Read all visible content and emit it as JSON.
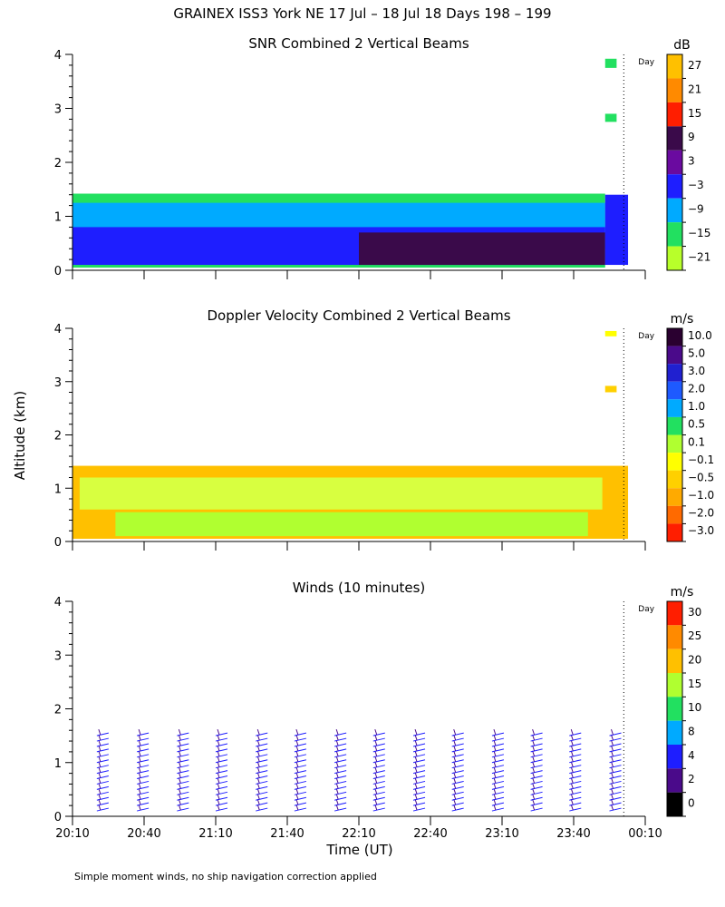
{
  "title": "GRAINEX ISS3 York NE  17 Jul – 18 Jul 18 Days 198 – 199",
  "footnote": "Simple moment winds, no ship navigation correction applied",
  "y_axis_label": "Altitude (km)",
  "x_axis_label": "Time (UT)",
  "day_label": "Day",
  "chart_data": [
    {
      "type": "heatmap",
      "title": "SNR Combined 2 Vertical Beams",
      "ylabel": "Altitude (km)",
      "ylim": [
        0,
        4
      ],
      "yticks": [
        "0",
        "1",
        "2",
        "3",
        "4"
      ],
      "xlim": [
        "20:10",
        "00:10"
      ],
      "xticks": [],
      "colorbar": {
        "unit": "dB",
        "labels": [
          "27",
          "21",
          "15",
          "9",
          "3",
          "−3",
          "−9",
          "−15",
          "−21"
        ],
        "colors": [
          "#ffc000",
          "#ff8a00",
          "#ff1e00",
          "#3a0a4a",
          "#6a0aa0",
          "#1e1eff",
          "#00aaff",
          "#22e060",
          "#b8ff2a"
        ]
      },
      "regions": [
        {
          "t0": 0,
          "t1": 3.72,
          "z0": 0.05,
          "z1": 1.42,
          "color": "#22e060"
        },
        {
          "t0": 0,
          "t1": 3.72,
          "z0": 0.4,
          "z1": 1.25,
          "color": "#00aaff"
        },
        {
          "t0": 0,
          "t1": 3.72,
          "z0": 0.1,
          "z1": 0.8,
          "color": "#1e1eff"
        },
        {
          "t0": 2.0,
          "t1": 3.72,
          "z0": 0.1,
          "z1": 0.7,
          "color": "#3a0a4a"
        },
        {
          "t0": 3.72,
          "t1": 3.88,
          "z0": 0.1,
          "z1": 1.4,
          "color": "#1e1eff"
        },
        {
          "t0": 3.72,
          "t1": 3.8,
          "z0": 2.75,
          "z1": 2.9,
          "color": "#22e060"
        },
        {
          "t0": 3.72,
          "t1": 3.8,
          "z0": 3.75,
          "z1": 3.92,
          "color": "#22e060"
        }
      ]
    },
    {
      "type": "heatmap",
      "title": "Doppler Velocity Combined 2 Vertical Beams",
      "ylabel": "Altitude (km)",
      "ylim": [
        0,
        4
      ],
      "yticks": [
        "0",
        "1",
        "2",
        "3",
        "4"
      ],
      "xlim": [
        "20:10",
        "00:10"
      ],
      "xticks": [],
      "colorbar": {
        "unit": "m/s",
        "labels": [
          "10.0",
          "5.0",
          "3.0",
          "2.0",
          "1.0",
          "0.5",
          "0.1",
          "−0.1",
          "−0.5",
          "−1.0",
          "−2.0",
          "−3.0"
        ],
        "colors": [
          "#2a0030",
          "#4a0a8a",
          "#2020d0",
          "#1e5aff",
          "#00aaff",
          "#22e060",
          "#b0ff30",
          "#ffff00",
          "#ffd000",
          "#ffaa00",
          "#ff6a00",
          "#ff1e00"
        ]
      },
      "regions": [
        {
          "t0": 0,
          "t1": 3.88,
          "z0": 0.05,
          "z1": 1.42,
          "color": "#ffc000"
        },
        {
          "t0": 0.05,
          "t1": 3.7,
          "z0": 0.6,
          "z1": 1.2,
          "color": "#d8ff40"
        },
        {
          "t0": 0.3,
          "t1": 3.6,
          "z0": 0.1,
          "z1": 0.55,
          "color": "#b0ff30"
        },
        {
          "t0": 3.72,
          "t1": 3.8,
          "z0": 2.8,
          "z1": 2.92,
          "color": "#ffd000"
        },
        {
          "t0": 3.72,
          "t1": 3.8,
          "z0": 3.85,
          "z1": 3.95,
          "color": "#ffff00"
        }
      ]
    },
    {
      "type": "scatter",
      "title": "Winds (10 minutes)",
      "ylabel": "Altitude (km)",
      "xlabel": "Time (UT)",
      "ylim": [
        0,
        4
      ],
      "yticks": [
        "0",
        "1",
        "2",
        "3",
        "4"
      ],
      "xlim": [
        "20:10",
        "00:10"
      ],
      "xticks": [
        "20:10",
        "20:40",
        "21:10",
        "21:40",
        "22:10",
        "22:40",
        "23:10",
        "23:40",
        "00:10"
      ],
      "colorbar": {
        "unit": "m/s",
        "labels": [
          "30",
          "25",
          "20",
          "15",
          "10",
          "8",
          "4",
          "2",
          "0"
        ],
        "colors": [
          "#ff1e00",
          "#ff8a00",
          "#ffc000",
          "#b0ff30",
          "#22e060",
          "#00aaff",
          "#1e1eff",
          "#4a0a8a",
          "#000000"
        ]
      },
      "barb_times_hours": [
        0.17,
        0.45,
        0.73,
        1.0,
        1.28,
        1.55,
        1.83,
        2.1,
        2.38,
        2.65,
        2.93,
        3.2,
        3.47,
        3.75
      ],
      "barb_altitude_range_km": [
        0.1,
        1.5
      ]
    }
  ]
}
